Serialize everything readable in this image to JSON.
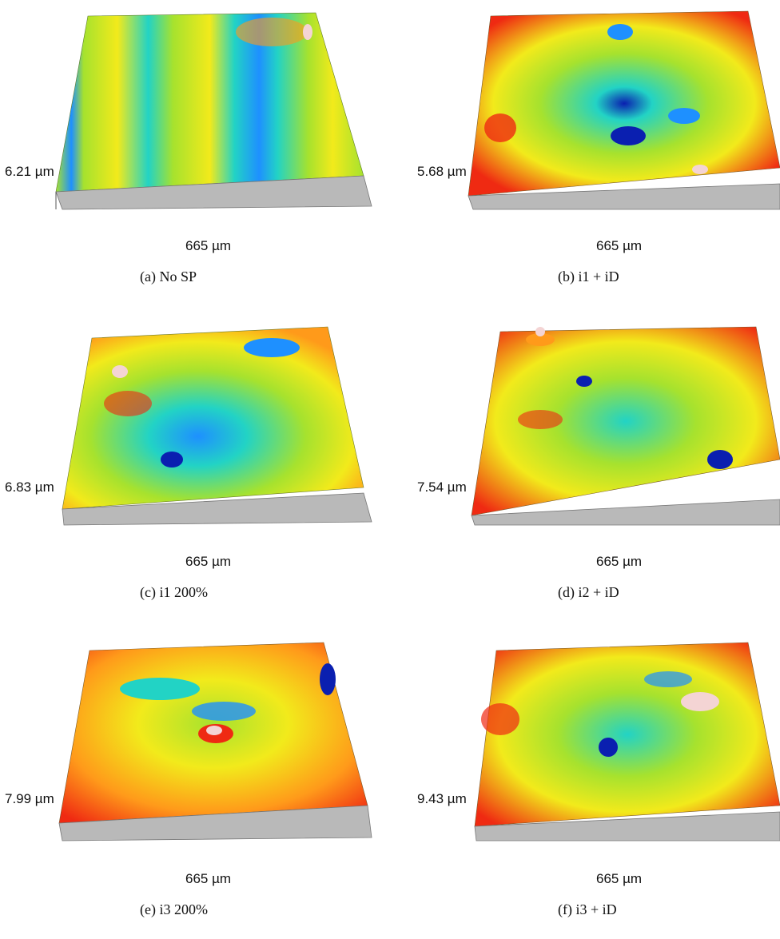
{
  "panels": [
    {
      "caption": "(a) No SP",
      "height_label": "6.21 µm",
      "width_label": "665 µm"
    },
    {
      "caption": "(b) i1 + iD",
      "height_label": "5.68 µm",
      "width_label": "665 µm"
    },
    {
      "caption": "(c) i1 200%",
      "height_label": "6.83 µm",
      "width_label": "665 µm"
    },
    {
      "caption": "(d) i2 + iD",
      "height_label": "7.54 µm",
      "width_label": "665 µm"
    },
    {
      "caption": "(e) i3 200%",
      "height_label": "7.99 µm",
      "width_label": "665 µm"
    },
    {
      "caption": "(f) i3 + iD",
      "height_label": "9.43 µm",
      "width_label": "665 µm"
    }
  ],
  "colormap": [
    "#0a1fb0",
    "#1e90ff",
    "#22d3c5",
    "#a6e22e",
    "#f2ea1b",
    "#ff9a1a",
    "#ef2a12",
    "#f4d4d4"
  ]
}
